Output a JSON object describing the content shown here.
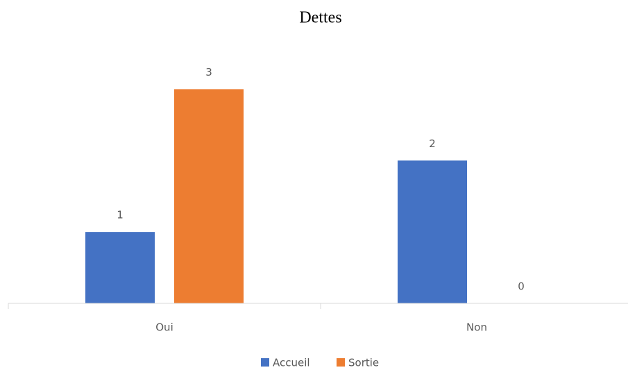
{
  "chart_data": {
    "type": "bar",
    "title": "Dettes",
    "categories": [
      "Oui",
      "Non"
    ],
    "series": [
      {
        "name": "Accueil",
        "color": "#4472c4",
        "values": [
          1,
          2
        ]
      },
      {
        "name": "Sortie",
        "color": "#ed7d31",
        "values": [
          3,
          0
        ]
      }
    ],
    "ylim": [
      0,
      3.5
    ],
    "legend": "bottom"
  }
}
